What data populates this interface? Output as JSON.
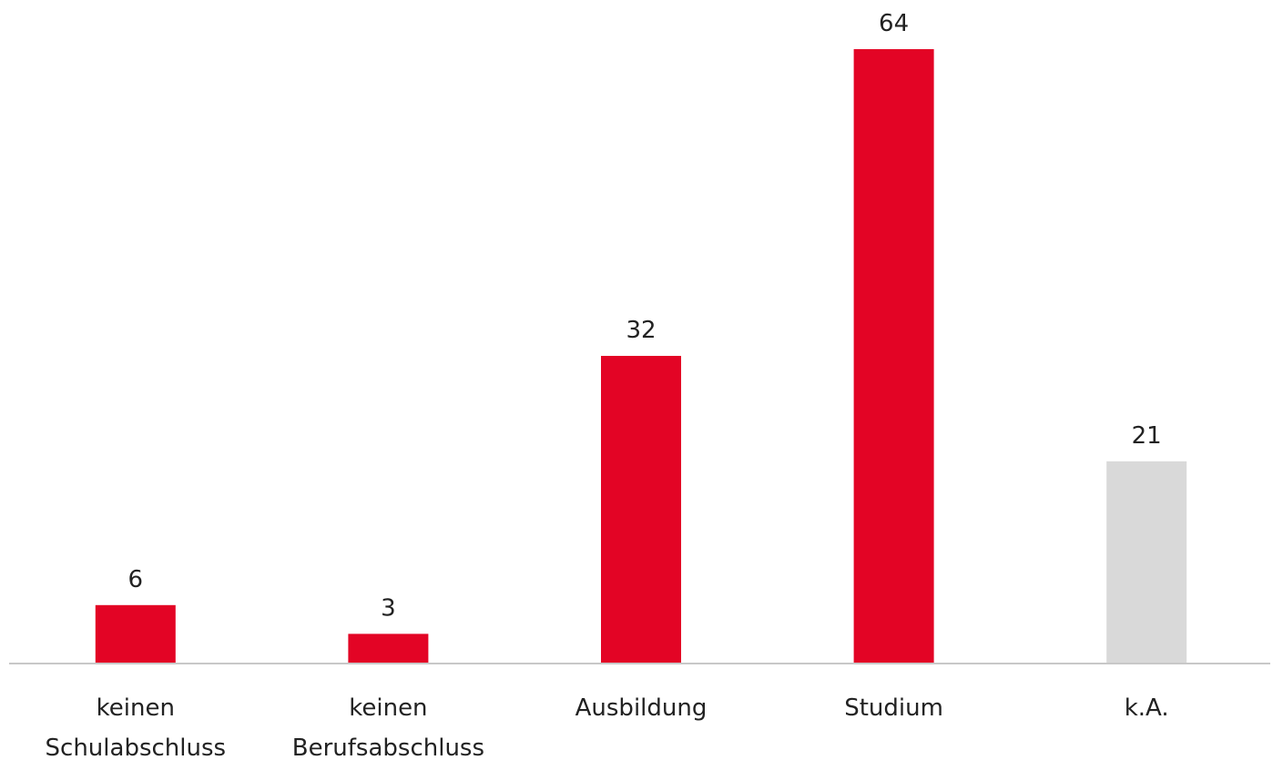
{
  "chart_data": {
    "type": "bar",
    "title": "",
    "xlabel": "",
    "ylabel": "",
    "ylim": [
      0,
      64
    ],
    "grid": false,
    "legend": "none",
    "categories": [
      [
        "keinen",
        "Schulabschluss"
      ],
      [
        "keinen",
        "Berufsabschluss"
      ],
      [
        "Ausbildung"
      ],
      [
        "Studium"
      ],
      [
        "k.A."
      ]
    ],
    "values": [
      6,
      3,
      32,
      64,
      21
    ],
    "value_labels": [
      "6",
      "3",
      "32",
      "64",
      "21"
    ],
    "colors": [
      "#e30425",
      "#e30425",
      "#e30425",
      "#e30425",
      "#d9d9d9"
    ],
    "axis_color": "#c8c8c8"
  }
}
